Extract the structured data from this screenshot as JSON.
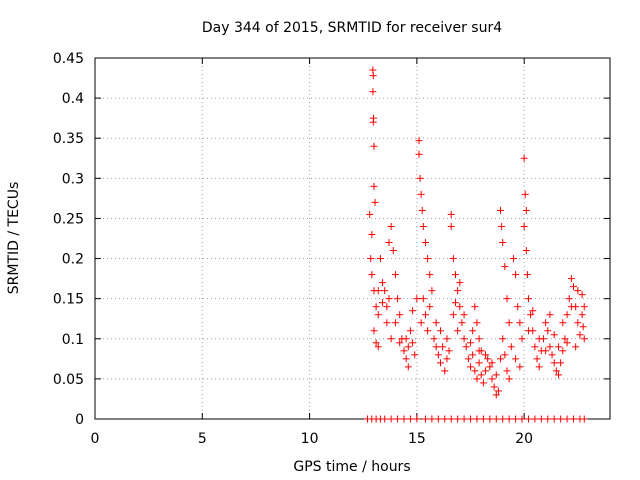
{
  "chart_data": {
    "type": "scatter",
    "title": "Day 344 of 2015, SRMTID for receiver sur4",
    "xlabel": "GPS time / hours",
    "ylabel": "SRMTID / TECUs",
    "xlim": [
      0,
      24
    ],
    "ylim": [
      0,
      0.45
    ],
    "x_ticks": [
      0,
      5,
      10,
      15,
      20
    ],
    "y_ticks": [
      0,
      0.05,
      0.1,
      0.15,
      0.2,
      0.25,
      0.3,
      0.35,
      0.4,
      0.45
    ],
    "x_tick_labels": [
      "0",
      "5",
      "10",
      "15",
      "20"
    ],
    "y_tick_labels": [
      "0",
      "0.05",
      "0.1",
      "0.15",
      "0.2",
      "0.25",
      "0.3",
      "0.35",
      "0.4",
      "0.45"
    ],
    "grid": true,
    "marker": "+",
    "color": "#ff0000",
    "series": [
      {
        "name": "SRMTID",
        "points": [
          [
            12.7,
            0.0
          ],
          [
            12.9,
            0.0
          ],
          [
            13.1,
            0.0
          ],
          [
            13.3,
            0.0
          ],
          [
            13.5,
            0.0
          ],
          [
            13.8,
            0.0
          ],
          [
            14.1,
            0.0
          ],
          [
            14.4,
            0.0
          ],
          [
            14.7,
            0.0
          ],
          [
            15.0,
            0.0
          ],
          [
            15.4,
            0.0
          ],
          [
            15.7,
            0.0
          ],
          [
            16.0,
            0.0
          ],
          [
            16.3,
            0.0
          ],
          [
            16.6,
            0.0
          ],
          [
            16.9,
            0.0
          ],
          [
            17.2,
            0.0
          ],
          [
            17.5,
            0.0
          ],
          [
            17.8,
            0.0
          ],
          [
            18.1,
            0.0
          ],
          [
            18.4,
            0.0
          ],
          [
            18.7,
            0.0
          ],
          [
            19.0,
            0.0
          ],
          [
            19.3,
            0.0
          ],
          [
            19.6,
            0.0
          ],
          [
            19.9,
            0.0
          ],
          [
            20.2,
            0.0
          ],
          [
            20.5,
            0.0
          ],
          [
            20.8,
            0.0
          ],
          [
            21.1,
            0.0
          ],
          [
            21.4,
            0.0
          ],
          [
            21.7,
            0.0
          ],
          [
            22.0,
            0.0
          ],
          [
            22.3,
            0.0
          ],
          [
            22.6,
            0.0
          ],
          [
            22.8,
            0.0
          ],
          [
            12.95,
            0.435
          ],
          [
            12.97,
            0.428
          ],
          [
            12.95,
            0.408
          ],
          [
            12.98,
            0.375
          ],
          [
            12.97,
            0.37
          ],
          [
            13.0,
            0.34
          ],
          [
            13.0,
            0.29
          ],
          [
            13.05,
            0.27
          ],
          [
            12.8,
            0.255
          ],
          [
            12.9,
            0.23
          ],
          [
            12.85,
            0.2
          ],
          [
            12.9,
            0.18
          ],
          [
            13.0,
            0.16
          ],
          [
            13.1,
            0.14
          ],
          [
            13.2,
            0.13
          ],
          [
            13.0,
            0.11
          ],
          [
            13.1,
            0.095
          ],
          [
            13.2,
            0.09
          ],
          [
            13.3,
            0.2
          ],
          [
            13.4,
            0.17
          ],
          [
            13.5,
            0.16
          ],
          [
            13.6,
            0.14
          ],
          [
            13.7,
            0.22
          ],
          [
            13.8,
            0.24
          ],
          [
            13.9,
            0.21
          ],
          [
            14.0,
            0.18
          ],
          [
            13.6,
            0.12
          ],
          [
            13.8,
            0.1
          ],
          [
            14.1,
            0.15
          ],
          [
            14.2,
            0.13
          ],
          [
            14.3,
            0.1
          ],
          [
            14.4,
            0.085
          ],
          [
            14.5,
            0.075
          ],
          [
            14.6,
            0.09
          ],
          [
            14.7,
            0.11
          ],
          [
            14.8,
            0.095
          ],
          [
            14.9,
            0.08
          ],
          [
            14.6,
            0.065
          ],
          [
            15.1,
            0.347
          ],
          [
            15.1,
            0.33
          ],
          [
            15.15,
            0.3
          ],
          [
            15.2,
            0.28
          ],
          [
            15.25,
            0.26
          ],
          [
            15.3,
            0.24
          ],
          [
            15.4,
            0.22
          ],
          [
            15.5,
            0.2
          ],
          [
            15.6,
            0.18
          ],
          [
            15.7,
            0.16
          ],
          [
            15.3,
            0.15
          ],
          [
            15.4,
            0.13
          ],
          [
            15.5,
            0.11
          ],
          [
            15.8,
            0.1
          ],
          [
            15.9,
            0.09
          ],
          [
            16.0,
            0.08
          ],
          [
            16.1,
            0.07
          ],
          [
            16.2,
            0.09
          ],
          [
            16.3,
            0.06
          ],
          [
            16.4,
            0.075
          ],
          [
            16.6,
            0.255
          ],
          [
            16.6,
            0.24
          ],
          [
            16.7,
            0.2
          ],
          [
            16.8,
            0.18
          ],
          [
            16.9,
            0.16
          ],
          [
            17.0,
            0.14
          ],
          [
            17.1,
            0.12
          ],
          [
            17.2,
            0.1
          ],
          [
            16.7,
            0.13
          ],
          [
            16.9,
            0.11
          ],
          [
            17.3,
            0.09
          ],
          [
            17.4,
            0.075
          ],
          [
            17.5,
            0.065
          ],
          [
            17.6,
            0.08
          ],
          [
            17.7,
            0.06
          ],
          [
            17.8,
            0.05
          ],
          [
            17.9,
            0.07
          ],
          [
            18.0,
            0.055
          ],
          [
            18.1,
            0.045
          ],
          [
            18.2,
            0.06
          ],
          [
            17.7,
            0.14
          ],
          [
            17.8,
            0.12
          ],
          [
            17.9,
            0.1
          ],
          [
            18.0,
            0.085
          ],
          [
            18.3,
            0.075
          ],
          [
            18.4,
            0.065
          ],
          [
            18.5,
            0.05
          ],
          [
            18.6,
            0.04
          ],
          [
            18.7,
            0.03
          ],
          [
            18.8,
            0.035
          ],
          [
            18.9,
            0.26
          ],
          [
            18.95,
            0.24
          ],
          [
            19.0,
            0.22
          ],
          [
            19.1,
            0.19
          ],
          [
            19.2,
            0.15
          ],
          [
            19.3,
            0.12
          ],
          [
            19.0,
            0.1
          ],
          [
            19.1,
            0.08
          ],
          [
            19.2,
            0.06
          ],
          [
            19.3,
            0.05
          ],
          [
            20.0,
            0.325
          ],
          [
            20.05,
            0.28
          ],
          [
            20.1,
            0.26
          ],
          [
            20.0,
            0.24
          ],
          [
            20.1,
            0.21
          ],
          [
            20.15,
            0.18
          ],
          [
            20.2,
            0.15
          ],
          [
            20.3,
            0.13
          ],
          [
            20.4,
            0.11
          ],
          [
            20.5,
            0.09
          ],
          [
            19.5,
            0.2
          ],
          [
            19.6,
            0.18
          ],
          [
            19.7,
            0.14
          ],
          [
            19.8,
            0.12
          ],
          [
            19.9,
            0.1
          ],
          [
            20.6,
            0.075
          ],
          [
            20.7,
            0.065
          ],
          [
            20.8,
            0.085
          ],
          [
            20.9,
            0.1
          ],
          [
            21.0,
            0.12
          ],
          [
            21.1,
            0.11
          ],
          [
            21.2,
            0.09
          ],
          [
            21.3,
            0.08
          ],
          [
            21.4,
            0.07
          ],
          [
            21.5,
            0.06
          ],
          [
            21.6,
            0.055
          ],
          [
            21.7,
            0.07
          ],
          [
            21.8,
            0.085
          ],
          [
            21.9,
            0.1
          ],
          [
            22.0,
            0.13
          ],
          [
            22.1,
            0.15
          ],
          [
            22.2,
            0.175
          ],
          [
            22.3,
            0.165
          ],
          [
            22.4,
            0.14
          ],
          [
            22.5,
            0.12
          ],
          [
            22.6,
            0.105
          ],
          [
            22.7,
            0.13
          ],
          [
            22.75,
            0.115
          ],
          [
            22.8,
            0.1
          ],
          [
            22.4,
            0.09
          ],
          [
            13.2,
            0.16
          ],
          [
            13.4,
            0.145
          ],
          [
            13.7,
            0.15
          ],
          [
            14.0,
            0.12
          ],
          [
            14.2,
            0.095
          ],
          [
            14.5,
            0.1
          ],
          [
            14.8,
            0.135
          ],
          [
            15.0,
            0.15
          ],
          [
            15.2,
            0.12
          ],
          [
            15.6,
            0.14
          ],
          [
            15.9,
            0.12
          ],
          [
            16.1,
            0.11
          ],
          [
            16.4,
            0.1
          ],
          [
            16.5,
            0.085
          ],
          [
            16.8,
            0.145
          ],
          [
            17.0,
            0.17
          ],
          [
            17.2,
            0.13
          ],
          [
            17.5,
            0.095
          ],
          [
            17.6,
            0.11
          ],
          [
            17.9,
            0.085
          ],
          [
            18.2,
            0.08
          ],
          [
            18.5,
            0.07
          ],
          [
            18.7,
            0.055
          ],
          [
            18.9,
            0.075
          ],
          [
            19.4,
            0.09
          ],
          [
            19.6,
            0.075
          ],
          [
            19.8,
            0.065
          ],
          [
            20.2,
            0.11
          ],
          [
            20.4,
            0.135
          ],
          [
            20.7,
            0.1
          ],
          [
            21.0,
            0.085
          ],
          [
            21.2,
            0.13
          ],
          [
            21.4,
            0.105
          ],
          [
            21.6,
            0.09
          ],
          [
            21.8,
            0.12
          ],
          [
            22.0,
            0.095
          ],
          [
            22.2,
            0.14
          ],
          [
            22.5,
            0.16
          ],
          [
            22.7,
            0.155
          ],
          [
            22.8,
            0.14
          ]
        ]
      }
    ]
  }
}
